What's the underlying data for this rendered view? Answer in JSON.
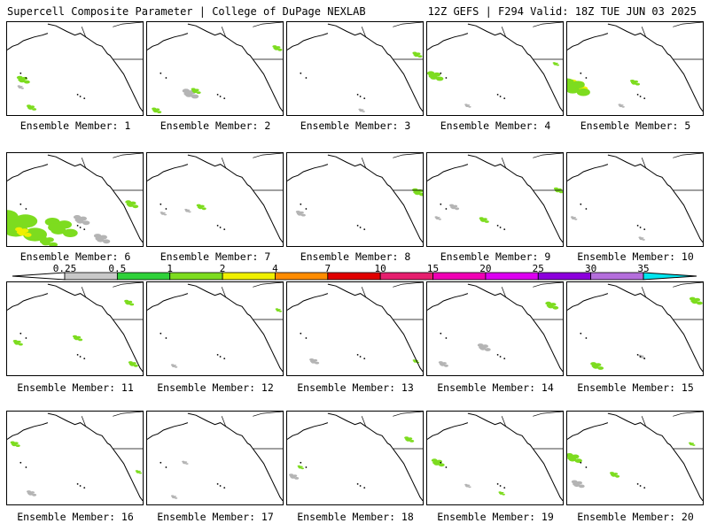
{
  "header": {
    "left": "Supercell Composite Parameter | College of DuPage NEXLAB",
    "right": "12Z GEFS | F294 Valid: 18Z TUE JUN 03 2025"
  },
  "caption_prefix": "Ensemble Member: ",
  "members": [
    {
      "id": "1",
      "blobs": [
        [
          "#7ddc1f",
          0.12,
          0.62,
          0.04
        ],
        [
          "#b4b4b4",
          0.1,
          0.7,
          0.02
        ],
        [
          "#7ddc1f",
          0.18,
          0.92,
          0.03
        ]
      ]
    },
    {
      "id": "2",
      "blobs": [
        [
          "#b4b4b4",
          0.32,
          0.77,
          0.05
        ],
        [
          "#7ddc1f",
          0.36,
          0.74,
          0.03
        ],
        [
          "#7ddc1f",
          0.07,
          0.95,
          0.03
        ],
        [
          "#7ddc1f",
          0.96,
          0.28,
          0.03
        ]
      ]
    },
    {
      "id": "3",
      "blobs": [
        [
          "#7ddc1f",
          0.96,
          0.35,
          0.03
        ],
        [
          "#b4b4b4",
          0.55,
          0.95,
          0.02
        ]
      ]
    },
    {
      "id": "4",
      "blobs": [
        [
          "#7ddc1f",
          0.06,
          0.58,
          0.05
        ],
        [
          "#b4b4b4",
          0.3,
          0.9,
          0.02
        ],
        [
          "#7ddc1f",
          0.95,
          0.45,
          0.02
        ]
      ]
    },
    {
      "id": "5",
      "blobs": [
        [
          "#f0f000",
          0.08,
          0.68,
          0.06
        ],
        [
          "#7ddc1f",
          0.06,
          0.7,
          0.09
        ],
        [
          "#7ddc1f",
          0.5,
          0.65,
          0.03
        ],
        [
          "#b4b4b4",
          0.4,
          0.9,
          0.02
        ]
      ]
    },
    {
      "id": "6",
      "blobs": [
        [
          "#7ddc1f",
          0.1,
          0.78,
          0.16
        ],
        [
          "#f0f000",
          0.12,
          0.85,
          0.05
        ],
        [
          "#7ddc1f",
          0.4,
          0.8,
          0.1
        ],
        [
          "#b4b4b4",
          0.55,
          0.72,
          0.05
        ],
        [
          "#7ddc1f",
          0.92,
          0.55,
          0.04
        ],
        [
          "#b4b4b4",
          0.7,
          0.92,
          0.05
        ],
        [
          "#7ddc1f",
          0.3,
          0.95,
          0.06
        ]
      ]
    },
    {
      "id": "7",
      "blobs": [
        [
          "#7ddc1f",
          0.4,
          0.58,
          0.03
        ],
        [
          "#b4b4b4",
          0.3,
          0.62,
          0.02
        ],
        [
          "#b4b4b4",
          0.12,
          0.65,
          0.02
        ]
      ]
    },
    {
      "id": "8",
      "blobs": [
        [
          "#7ddc1f",
          0.97,
          0.42,
          0.04
        ],
        [
          "#b4b4b4",
          0.1,
          0.65,
          0.03
        ]
      ]
    },
    {
      "id": "9",
      "blobs": [
        [
          "#b4b4b4",
          0.2,
          0.58,
          0.03
        ],
        [
          "#7ddc1f",
          0.42,
          0.72,
          0.03
        ],
        [
          "#7ddc1f",
          0.97,
          0.4,
          0.03
        ],
        [
          "#b4b4b4",
          0.08,
          0.7,
          0.02
        ]
      ]
    },
    {
      "id": "10",
      "blobs": [
        [
          "#b4b4b4",
          0.55,
          0.92,
          0.02
        ],
        [
          "#b4b4b4",
          0.05,
          0.7,
          0.02
        ]
      ]
    },
    {
      "id": "11",
      "blobs": [
        [
          "#7ddc1f",
          0.08,
          0.65,
          0.03
        ],
        [
          "#7ddc1f",
          0.52,
          0.6,
          0.03
        ],
        [
          "#7ddc1f",
          0.93,
          0.88,
          0.03
        ],
        [
          "#7ddc1f",
          0.9,
          0.22,
          0.03
        ]
      ]
    },
    {
      "id": "12",
      "blobs": [
        [
          "#b4b4b4",
          0.2,
          0.9,
          0.02
        ],
        [
          "#7ddc1f",
          0.97,
          0.3,
          0.02
        ]
      ]
    },
    {
      "id": "13",
      "blobs": [
        [
          "#b4b4b4",
          0.2,
          0.85,
          0.03
        ],
        [
          "#7ddc1f",
          0.95,
          0.85,
          0.02
        ]
      ]
    },
    {
      "id": "14",
      "blobs": [
        [
          "#7ddc1f",
          0.92,
          0.25,
          0.04
        ],
        [
          "#b4b4b4",
          0.42,
          0.7,
          0.04
        ],
        [
          "#b4b4b4",
          0.12,
          0.88,
          0.03
        ]
      ]
    },
    {
      "id": "15",
      "blobs": [
        [
          "#7ddc1f",
          0.95,
          0.2,
          0.04
        ],
        [
          "#7ddc1f",
          0.22,
          0.9,
          0.04
        ],
        [
          "#b4b4b4",
          0.55,
          0.8,
          0.02
        ]
      ]
    },
    {
      "id": "16",
      "blobs": [
        [
          "#7ddc1f",
          0.06,
          0.35,
          0.03
        ],
        [
          "#b4b4b4",
          0.18,
          0.88,
          0.03
        ],
        [
          "#7ddc1f",
          0.97,
          0.65,
          0.02
        ]
      ]
    },
    {
      "id": "17",
      "blobs": [
        [
          "#b4b4b4",
          0.28,
          0.55,
          0.02
        ],
        [
          "#b4b4b4",
          0.2,
          0.92,
          0.02
        ]
      ]
    },
    {
      "id": "18",
      "blobs": [
        [
          "#7ddc1f",
          0.9,
          0.3,
          0.03
        ],
        [
          "#b4b4b4",
          0.05,
          0.7,
          0.03
        ],
        [
          "#7ddc1f",
          0.1,
          0.6,
          0.02
        ]
      ]
    },
    {
      "id": "19",
      "blobs": [
        [
          "#7ddc1f",
          0.08,
          0.55,
          0.04
        ],
        [
          "#b4b4b4",
          0.3,
          0.8,
          0.02
        ],
        [
          "#7ddc1f",
          0.55,
          0.88,
          0.02
        ]
      ]
    },
    {
      "id": "20",
      "blobs": [
        [
          "#7ddc1f",
          0.05,
          0.5,
          0.05
        ],
        [
          "#b4b4b4",
          0.08,
          0.78,
          0.04
        ],
        [
          "#7ddc1f",
          0.35,
          0.68,
          0.03
        ],
        [
          "#7ddc1f",
          0.92,
          0.35,
          0.02
        ]
      ]
    }
  ],
  "colorbar": {
    "labels": [
      "0.25",
      "0.5",
      "1",
      "2",
      "4",
      "7",
      "10",
      "15",
      "20",
      "25",
      "30",
      "35"
    ],
    "colors": [
      "#c8c8c8",
      "#2fd13a",
      "#7ddc1f",
      "#f0f000",
      "#ff8c00",
      "#e00000",
      "#e61f6e",
      "#f000b4",
      "#dc00f0",
      "#8c00dc",
      "#b46edc",
      "#00e6f0"
    ]
  }
}
